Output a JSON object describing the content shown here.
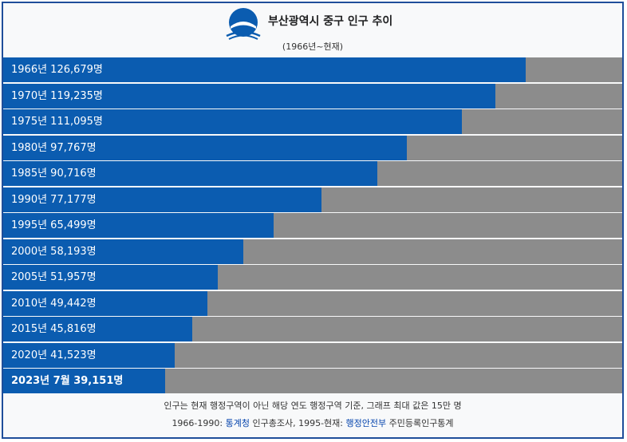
{
  "header": {
    "title": "부산광역시 중구 인구 추이",
    "subtitle": "(1966년~현재)",
    "logo_icon": "busan-emblem-icon"
  },
  "colors": {
    "bar": "#0b5cb0",
    "track": "#8c8c8c",
    "border": "#1f4e9a"
  },
  "chart_data": {
    "type": "bar",
    "orientation": "horizontal",
    "xlim": [
      0,
      150000
    ],
    "categories": [
      "1966년",
      "1970년",
      "1975년",
      "1980년",
      "1985년",
      "1990년",
      "1995년",
      "2000년",
      "2005년",
      "2010년",
      "2015년",
      "2020년",
      "2023년 7월"
    ],
    "values": [
      126679,
      119235,
      111095,
      97767,
      90716,
      77177,
      65499,
      58193,
      51957,
      49442,
      45816,
      41523,
      39151
    ],
    "labels": [
      "1966년 126,679명",
      "1970년 119,235명",
      "1975년 111,095명",
      "1980년 97,767명",
      "1985년 90,716명",
      "1990년 77,177명",
      "1995년 65,499명",
      "2000년 58,193명",
      "2005년 51,957명",
      "2010년 49,442명",
      "2015년 45,816명",
      "2020년 41,523명",
      "2023년 7월 39,151명"
    ]
  },
  "footer": {
    "note": "인구는 현재 행정구역이 아닌 해당 연도 행정구역 기준, 그래프 최대 값은 15만 명",
    "source_prefix": "1966-1990: ",
    "source_link1": "통계청",
    "source_mid": " 인구총조사, 1995-현재: ",
    "source_link2": "행정안전부",
    "source_suffix": " 주민등록인구통계"
  }
}
